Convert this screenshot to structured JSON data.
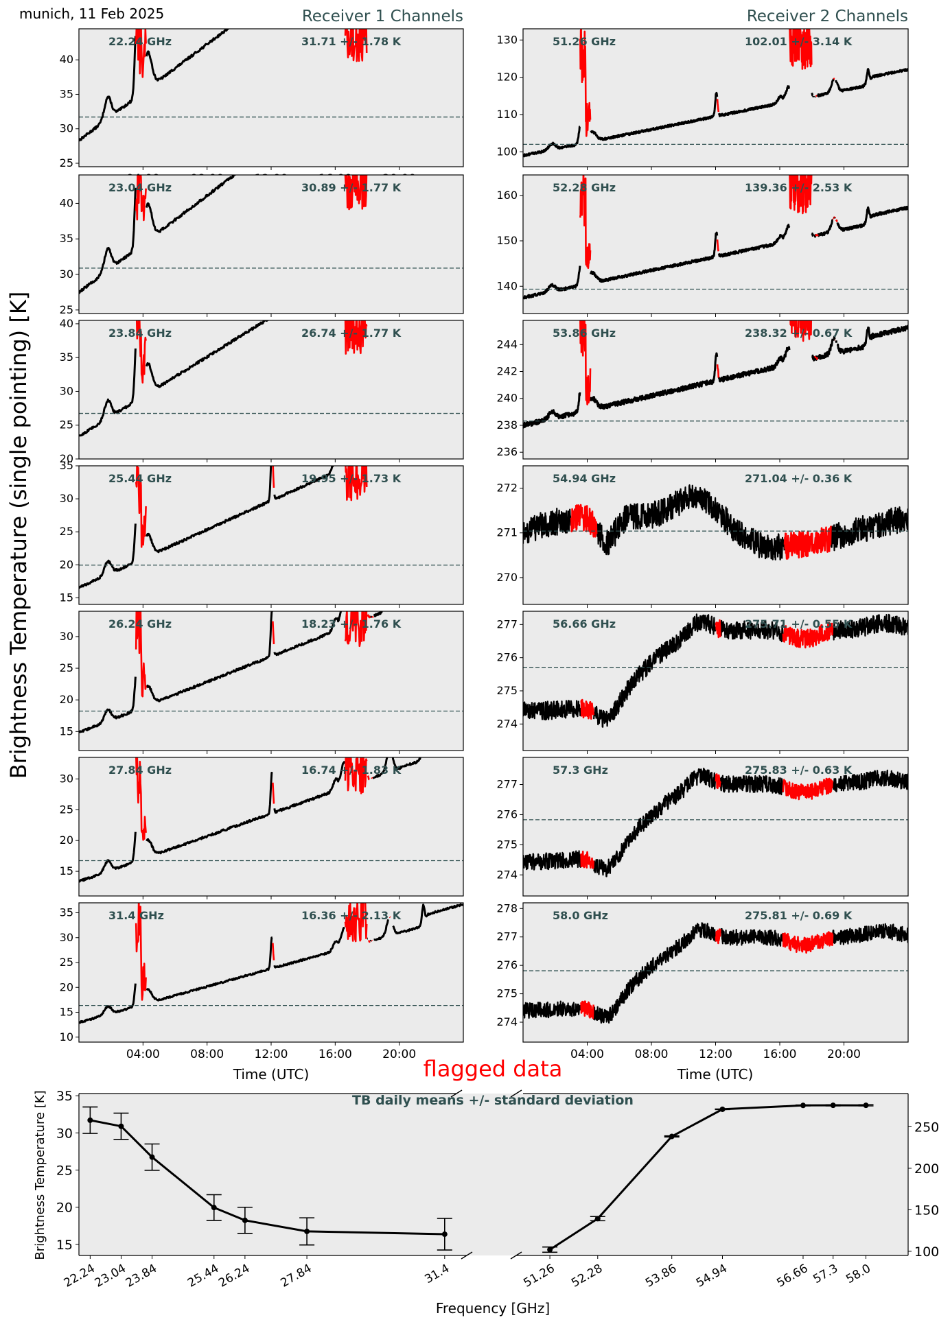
{
  "figure": {
    "title": "munich, 11 Feb 2025",
    "ylabel": "Brightness Temperature (single pointing) [K]",
    "flag_label": "flagged data",
    "colors": {
      "good": "#000000",
      "flagged": "#ff0000",
      "panel_bg": "#ebebeb",
      "annotation": "#2f4f4f"
    }
  },
  "receivers": [
    {
      "title": "Receiver 1 Channels",
      "xlabel": "Time (UTC)"
    },
    {
      "title": "Receiver 2 Channels",
      "xlabel": "Time (UTC)"
    }
  ],
  "chart_data": [
    {
      "type": "line",
      "receiver": 1,
      "channel_label": "22.24 GHz",
      "stats_label": "31.71 +/- 1.78 K",
      "ylim": [
        24.5,
        44.5
      ],
      "yticks": [
        25,
        30,
        35,
        40
      ],
      "mean": 31.71,
      "std": 1.78,
      "x_ticks": [
        "04:00",
        "08:00",
        "12:00",
        "16:00",
        "20:00"
      ]
    },
    {
      "type": "line",
      "receiver": 1,
      "channel_label": "23.04 GHz",
      "stats_label": "30.89 +/- 1.77 K",
      "ylim": [
        24.5,
        44
      ],
      "yticks": [
        25,
        30,
        35,
        40
      ],
      "mean": 30.89,
      "std": 1.77
    },
    {
      "type": "line",
      "receiver": 1,
      "channel_label": "23.84 GHz",
      "stats_label": "26.74 +/- 1.77 K",
      "ylim": [
        20,
        40.5
      ],
      "yticks": [
        20,
        25,
        30,
        35,
        40
      ],
      "mean": 26.74,
      "std": 1.77
    },
    {
      "type": "line",
      "receiver": 1,
      "channel_label": "25.44 GHz",
      "stats_label": "19.95 +/- 1.73 K",
      "ylim": [
        14,
        35
      ],
      "yticks": [
        15,
        20,
        25,
        30,
        35
      ],
      "mean": 19.95,
      "std": 1.73
    },
    {
      "type": "line",
      "receiver": 1,
      "channel_label": "26.24 GHz",
      "stats_label": "18.23 +/- 1.76 K",
      "ylim": [
        12,
        34
      ],
      "yticks": [
        15,
        20,
        25,
        30
      ],
      "mean": 18.23,
      "std": 1.76
    },
    {
      "type": "line",
      "receiver": 1,
      "channel_label": "27.84 GHz",
      "stats_label": "16.74 +/- 1.83 K",
      "ylim": [
        11,
        33.5
      ],
      "yticks": [
        15,
        20,
        25,
        30
      ],
      "mean": 16.74,
      "std": 1.83
    },
    {
      "type": "line",
      "receiver": 1,
      "channel_label": "31.4 GHz",
      "stats_label": "16.36 +/- 2.13 K",
      "ylim": [
        9,
        37
      ],
      "yticks": [
        10,
        15,
        20,
        25,
        30,
        35
      ],
      "mean": 16.36,
      "std": 2.13,
      "x_ticks": [
        "04:00",
        "08:00",
        "12:00",
        "16:00",
        "20:00"
      ]
    },
    {
      "type": "line",
      "receiver": 2,
      "channel_label": "51.26 GHz",
      "stats_label": "102.01 +/- 3.14 K",
      "ylim": [
        96,
        133
      ],
      "yticks": [
        100,
        110,
        120,
        130
      ],
      "mean": 102.01,
      "std": 3.14
    },
    {
      "type": "line",
      "receiver": 2,
      "channel_label": "52.28 GHz",
      "stats_label": "139.36 +/- 2.53 K",
      "ylim": [
        134,
        164.5
      ],
      "yticks": [
        140,
        150,
        160
      ],
      "mean": 139.36,
      "std": 2.53
    },
    {
      "type": "line",
      "receiver": 2,
      "channel_label": "53.86 GHz",
      "stats_label": "238.32 +/- 0.67 K",
      "ylim": [
        235.5,
        245.8
      ],
      "yticks": [
        236,
        238,
        240,
        242,
        244
      ],
      "mean": 238.32,
      "std": 0.67
    },
    {
      "type": "line",
      "receiver": 2,
      "channel_label": "54.94 GHz",
      "stats_label": "271.04 +/- 0.36 K",
      "ylim": [
        269.4,
        272.5
      ],
      "yticks": [
        270,
        271,
        272
      ],
      "mean": 271.04,
      "std": 0.36
    },
    {
      "type": "line",
      "receiver": 2,
      "channel_label": "56.66 GHz",
      "stats_label": "275.71 +/- 0.55 K",
      "ylim": [
        273.2,
        277.4
      ],
      "yticks": [
        274,
        275,
        276,
        277
      ],
      "mean": 275.71,
      "std": 0.55
    },
    {
      "type": "line",
      "receiver": 2,
      "channel_label": "57.3 GHz",
      "stats_label": "275.83 +/- 0.63 K",
      "ylim": [
        273.3,
        277.9
      ],
      "yticks": [
        274,
        275,
        276,
        277
      ],
      "mean": 275.83,
      "std": 0.63
    },
    {
      "type": "line",
      "receiver": 2,
      "channel_label": "58.0 GHz",
      "stats_label": "275.81 +/- 0.69 K",
      "ylim": [
        273.3,
        278.2
      ],
      "yticks": [
        274,
        275,
        276,
        277,
        278
      ],
      "mean": 275.81,
      "std": 0.69,
      "x_ticks": [
        "04:00",
        "08:00",
        "12:00",
        "16:00",
        "20:00"
      ]
    },
    {
      "type": "line",
      "title": "TB daily means +/- standard deviation",
      "xlabel": "Frequency [GHz]",
      "ylabel": "Brightness Temperature [K]",
      "left": {
        "frequencies": [
          22.24,
          23.04,
          23.84,
          25.44,
          26.24,
          27.84,
          31.4
        ],
        "tick_labels": [
          "22.24",
          "23.04",
          "23.84",
          "25.44",
          "26.24",
          "27.84",
          "31.4"
        ],
        "means": [
          31.71,
          30.89,
          26.74,
          19.95,
          18.23,
          16.74,
          16.36
        ],
        "std": [
          1.78,
          1.77,
          1.77,
          1.73,
          1.76,
          1.83,
          2.13
        ],
        "ylim": [
          13.5,
          35.3
        ],
        "yticks": [
          15,
          20,
          25,
          30,
          35
        ]
      },
      "right": {
        "frequencies": [
          51.26,
          52.28,
          53.86,
          54.94,
          56.66,
          57.3,
          58.0
        ],
        "tick_labels": [
          "51.26",
          "52.28",
          "53.86",
          "54.94",
          "56.66",
          "57.3",
          "58.0"
        ],
        "means": [
          102.01,
          139.36,
          238.32,
          271.04,
          275.71,
          275.83,
          275.81
        ],
        "std": [
          3.14,
          2.53,
          0.67,
          0.36,
          0.55,
          0.63,
          0.69
        ],
        "ylim": [
          95,
          290
        ],
        "yticks": [
          100,
          150,
          200,
          250
        ]
      }
    }
  ]
}
